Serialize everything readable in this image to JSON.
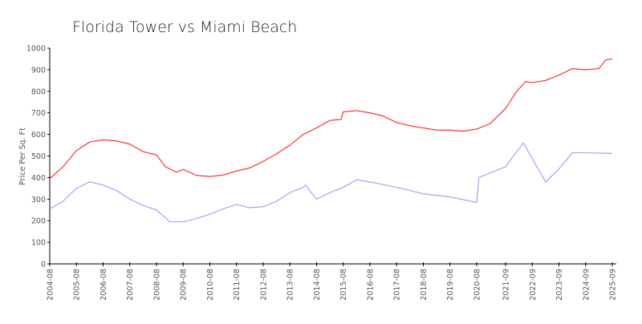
{
  "chart_data": {
    "type": "line",
    "title": "Florida Tower vs Miami Beach",
    "xlabel": "",
    "ylabel": "Price Per Sq. Ft",
    "ylim": [
      0,
      1000
    ],
    "yticks": [
      0,
      100,
      200,
      300,
      400,
      500,
      600,
      700,
      800,
      900,
      1000
    ],
    "xlim": [
      "2004-08",
      "2025-09"
    ],
    "xticks": [
      "2004-08",
      "2005-08",
      "2006-08",
      "2007-08",
      "2008-08",
      "2009-08",
      "2010-08",
      "2011-08",
      "2012-08",
      "2013-08",
      "2014-08",
      "2015-08",
      "2016-08",
      "2017-08",
      "2018-08",
      "2019-08",
      "2020-08",
      "2021-09",
      "2022-09",
      "2023-09",
      "2024-09",
      "2025-09"
    ],
    "grid": false,
    "series": [
      {
        "color": "#ff2020",
        "points": [
          [
            "2004-08",
            395
          ],
          [
            "2005-02",
            450
          ],
          [
            "2005-08",
            525
          ],
          [
            "2006-02",
            565
          ],
          [
            "2006-08",
            575
          ],
          [
            "2007-02",
            570
          ],
          [
            "2007-08",
            555
          ],
          [
            "2008-02",
            520
          ],
          [
            "2008-08",
            505
          ],
          [
            "2008-12",
            450
          ],
          [
            "2009-05",
            425
          ],
          [
            "2009-08",
            438
          ],
          [
            "2010-02",
            410
          ],
          [
            "2010-08",
            405
          ],
          [
            "2011-02",
            412
          ],
          [
            "2011-08",
            430
          ],
          [
            "2012-02",
            445
          ],
          [
            "2012-08",
            475
          ],
          [
            "2013-02",
            510
          ],
          [
            "2013-08",
            550
          ],
          [
            "2014-02",
            600
          ],
          [
            "2014-08",
            630
          ],
          [
            "2015-02",
            665
          ],
          [
            "2015-07",
            670
          ],
          [
            "2015-08",
            705
          ],
          [
            "2016-02",
            710
          ],
          [
            "2016-08",
            700
          ],
          [
            "2017-02",
            685
          ],
          [
            "2017-08",
            655
          ],
          [
            "2018-02",
            640
          ],
          [
            "2018-08",
            630
          ],
          [
            "2019-02",
            620
          ],
          [
            "2019-08",
            620
          ],
          [
            "2020-02",
            615
          ],
          [
            "2020-08",
            625
          ],
          [
            "2021-02",
            650
          ],
          [
            "2021-09",
            720
          ],
          [
            "2022-02",
            800
          ],
          [
            "2022-06",
            845
          ],
          [
            "2022-09",
            840
          ],
          [
            "2023-03",
            850
          ],
          [
            "2023-09",
            875
          ],
          [
            "2024-03",
            905
          ],
          [
            "2024-09",
            900
          ],
          [
            "2025-03",
            905
          ],
          [
            "2025-06",
            945
          ],
          [
            "2025-09",
            950
          ]
        ]
      },
      {
        "color": "#9999ff",
        "points": [
          [
            "2004-08",
            255
          ],
          [
            "2005-02",
            290
          ],
          [
            "2005-08",
            350
          ],
          [
            "2006-02",
            380
          ],
          [
            "2006-08",
            365
          ],
          [
            "2007-02",
            340
          ],
          [
            "2007-08",
            300
          ],
          [
            "2008-02",
            270
          ],
          [
            "2008-08",
            250
          ],
          [
            "2009-02",
            195
          ],
          [
            "2009-08",
            195
          ],
          [
            "2010-02",
            210
          ],
          [
            "2010-08",
            230
          ],
          [
            "2011-02",
            255
          ],
          [
            "2011-08",
            275
          ],
          [
            "2012-02",
            260
          ],
          [
            "2012-08",
            265
          ],
          [
            "2013-02",
            290
          ],
          [
            "2013-08",
            330
          ],
          [
            "2014-02",
            355
          ],
          [
            "2014-03",
            365
          ],
          [
            "2014-08",
            300
          ],
          [
            "2015-02",
            330
          ],
          [
            "2015-08",
            355
          ],
          [
            "2016-02",
            390
          ],
          [
            "2016-08",
            380
          ],
          [
            "2017-08",
            355
          ],
          [
            "2018-08",
            325
          ],
          [
            "2019-08",
            310
          ],
          [
            "2020-08",
            285
          ],
          [
            "2020-09",
            400
          ],
          [
            "2021-09",
            450
          ],
          [
            "2022-02",
            520
          ],
          [
            "2022-05",
            560
          ],
          [
            "2023-03",
            380
          ],
          [
            "2023-09",
            440
          ],
          [
            "2024-03",
            515
          ],
          [
            "2024-09",
            515
          ],
          [
            "2025-09",
            512
          ]
        ]
      }
    ]
  }
}
